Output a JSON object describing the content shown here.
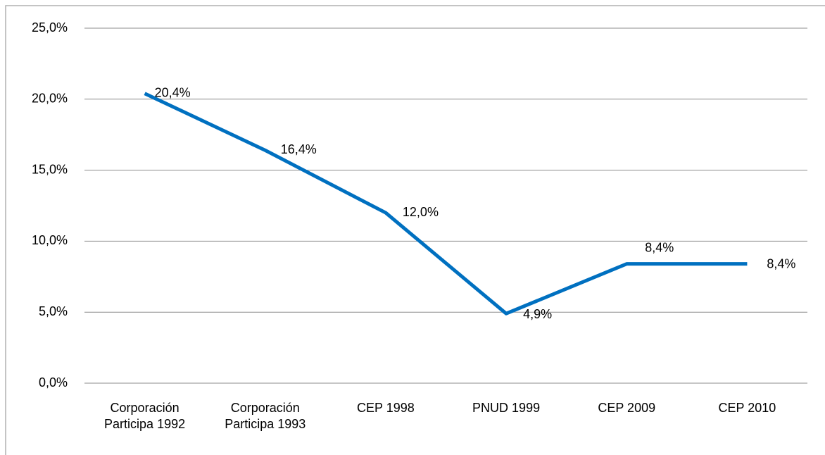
{
  "chart_data": {
    "type": "line",
    "categories": [
      "Corporación Participa 1992",
      "Corporación Participa 1993",
      "CEP 1998",
      "PNUD 1999",
      "CEP 2009",
      "CEP 2010"
    ],
    "series": [
      {
        "name": null,
        "color": "#0070c0",
        "values": [
          20.4,
          16.4,
          12.0,
          4.9,
          8.4,
          8.4
        ],
        "value_labels": [
          "20,4%",
          "16,4%",
          "12,0%",
          "4,9%",
          "8,4%",
          "8,4%"
        ]
      }
    ],
    "ylim": [
      0,
      25
    ],
    "yticks": [
      {
        "value": 0,
        "label": "0,0%"
      },
      {
        "value": 5,
        "label": "5,0%"
      },
      {
        "value": 10,
        "label": "10,0%"
      },
      {
        "value": 15,
        "label": "15,0%"
      },
      {
        "value": 20,
        "label": "20,0%"
      },
      {
        "value": 25,
        "label": "25,0%"
      }
    ],
    "grid": true,
    "legend": false
  }
}
